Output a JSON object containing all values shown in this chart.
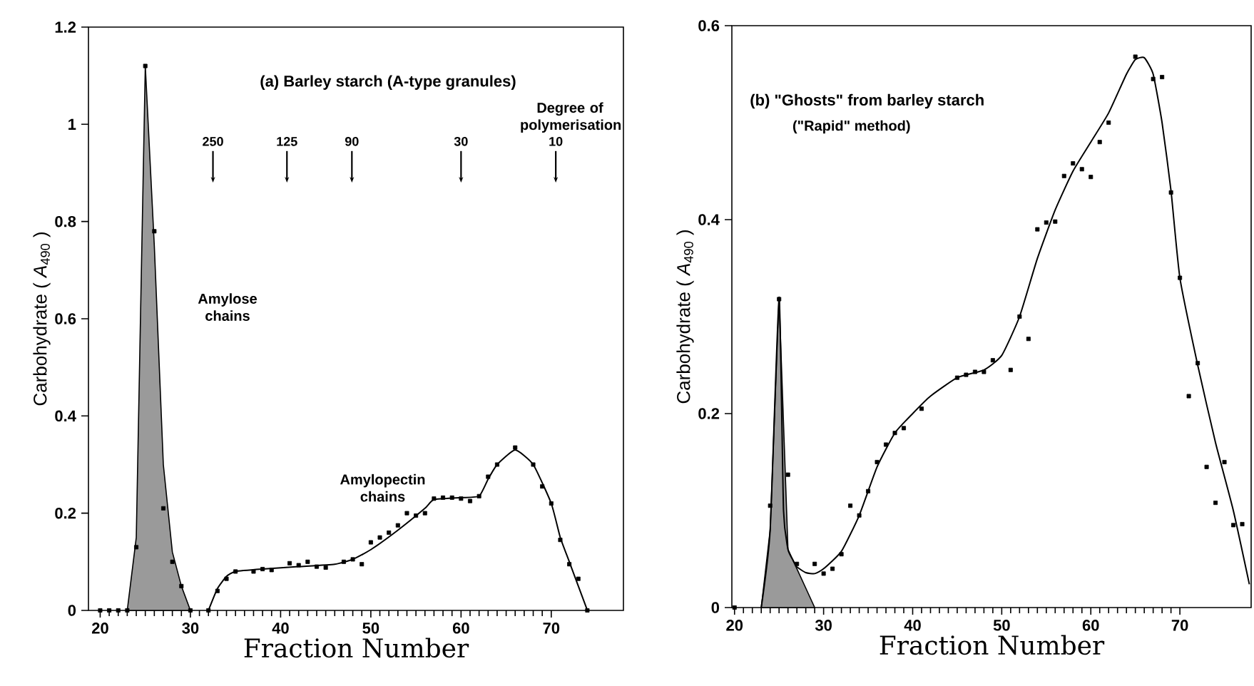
{
  "chart_data": [
    {
      "type": "scatter",
      "title": "(a) Barley starch (A-type granules)",
      "xlabel": "Fraction Number",
      "ylabel": "Carbohydrate ( *A*$_{490}$ )",
      "xlim": [
        18.7,
        78
      ],
      "ylim": [
        0,
        1.2
      ],
      "xticks": [
        20,
        30,
        40,
        50,
        60,
        70
      ],
      "yticks": [
        0,
        0.2,
        0.4,
        0.6,
        0.8,
        1,
        1.2
      ],
      "annotations": [
        "Amylose chains",
        "Amylopectin chains",
        "Degree of polymerisation",
        {
          "text": "250",
          "x": 32.5,
          "y": 0.88
        },
        {
          "text": "125",
          "x": 40.7,
          "y": 0.88
        },
        {
          "text": "90",
          "x": 47.9,
          "y": 0.88
        },
        {
          "text": "30",
          "x": 60,
          "y": 0.88
        },
        {
          "text": "10",
          "x": 70.5,
          "y": 0.88
        }
      ],
      "series": [
        {
          "type": "area",
          "color": "#9a9a9a",
          "x": [
            23,
            24,
            25,
            26,
            27,
            28,
            29,
            30
          ],
          "values": [
            0,
            0.15,
            1.12,
            0.75,
            0.3,
            0.12,
            0.05,
            0
          ]
        },
        {
          "type": "line",
          "color": "#000000",
          "x": [
            32,
            33,
            34,
            35,
            38,
            42,
            46,
            48,
            50,
            53,
            56,
            57,
            60,
            62,
            63,
            64,
            66,
            68,
            70,
            71,
            72,
            74
          ],
          "values": [
            0,
            0.045,
            0.07,
            0.08,
            0.085,
            0.09,
            0.095,
            0.105,
            0.125,
            0.165,
            0.21,
            0.228,
            0.232,
            0.235,
            0.27,
            0.3,
            0.33,
            0.3,
            0.22,
            0.15,
            0.1,
            0
          ]
        },
        {
          "marker": "square",
          "color": "#000000",
          "x": [
            20,
            21,
            22,
            23,
            24,
            25,
            26,
            27,
            28,
            29,
            30,
            32,
            33,
            34,
            35,
            37,
            38,
            39,
            41,
            42,
            43,
            44,
            45,
            47,
            48,
            49,
            50,
            51,
            52,
            53,
            54,
            55,
            56,
            57,
            58,
            59,
            60,
            61,
            62,
            63,
            64,
            66,
            68,
            69,
            70,
            71,
            72,
            73,
            74
          ],
          "values": [
            0,
            0,
            0,
            0,
            0.13,
            1.12,
            0.78,
            0.21,
            0.1,
            0.05,
            0,
            0,
            0.04,
            0.065,
            0.08,
            0.08,
            0.085,
            0.083,
            0.097,
            0.093,
            0.1,
            0.09,
            0.088,
            0.1,
            0.105,
            0.095,
            0.14,
            0.15,
            0.16,
            0.175,
            0.2,
            0.195,
            0.2,
            0.23,
            0.232,
            0.232,
            0.23,
            0.225,
            0.235,
            0.275,
            0.3,
            0.335,
            0.3,
            0.255,
            0.22,
            0.145,
            0.095,
            0.065,
            0
          ]
        }
      ]
    },
    {
      "type": "scatter",
      "title": "(b) \"Ghosts\" from barley starch",
      "subtitle": "(\"Rapid\" method)",
      "xlabel": "Fraction Number",
      "ylabel": "Carbohydrate ( *A*$_{490}$ )",
      "xlim": [
        19.7,
        78
      ],
      "ylim": [
        0,
        0.6
      ],
      "xticks": [
        20,
        30,
        40,
        50,
        60,
        70
      ],
      "yticks": [
        0,
        0.2,
        0.4,
        0.6
      ],
      "series": [
        {
          "type": "area",
          "color": "#9a9a9a",
          "x": [
            23,
            24,
            25,
            26,
            27,
            28,
            29
          ],
          "values": [
            0,
            0.08,
            0.32,
            0.06,
            0.04,
            0.02,
            0
          ]
        },
        {
          "type": "line",
          "color": "#000000",
          "x": [
            23,
            24,
            25,
            25.5,
            26,
            26.5,
            27,
            28,
            29,
            30,
            32,
            34,
            36,
            38,
            40,
            42,
            45,
            48,
            50,
            52,
            54,
            56,
            58,
            60,
            62,
            64,
            65,
            66,
            67,
            68,
            69,
            70,
            72,
            74,
            76,
            77.8
          ],
          "values": [
            0,
            0.08,
            0.32,
            0.1,
            0.06,
            0.05,
            0.042,
            0.036,
            0.035,
            0.04,
            0.058,
            0.095,
            0.145,
            0.18,
            0.2,
            0.218,
            0.237,
            0.245,
            0.26,
            0.3,
            0.36,
            0.41,
            0.45,
            0.48,
            0.51,
            0.55,
            0.565,
            0.567,
            0.55,
            0.5,
            0.43,
            0.34,
            0.25,
            0.17,
            0.1,
            0.024
          ]
        },
        {
          "marker": "square",
          "color": "#000000",
          "x": [
            20,
            24,
            25,
            26,
            27,
            29,
            30,
            31,
            32,
            33,
            34,
            35,
            36,
            37,
            38,
            39,
            41,
            45,
            46,
            47,
            48,
            49,
            51,
            52,
            53,
            54,
            55,
            56,
            57,
            58,
            59,
            60,
            61,
            62,
            65,
            67,
            68,
            69,
            70,
            71,
            72,
            73,
            74,
            75,
            76,
            77
          ],
          "values": [
            0,
            0.105,
            0.318,
            0.137,
            0.045,
            0.045,
            0.035,
            0.04,
            0.055,
            0.105,
            0.095,
            0.12,
            0.15,
            0.168,
            0.18,
            0.185,
            0.205,
            0.237,
            0.24,
            0.243,
            0.243,
            0.255,
            0.245,
            0.3,
            0.277,
            0.39,
            0.397,
            0.398,
            0.445,
            0.458,
            0.452,
            0.444,
            0.48,
            0.5,
            0.568,
            0.545,
            0.547,
            0.428,
            0.34,
            0.218,
            0.252,
            0.145,
            0.108,
            0.15,
            0.085,
            0.086
          ]
        }
      ]
    }
  ]
}
